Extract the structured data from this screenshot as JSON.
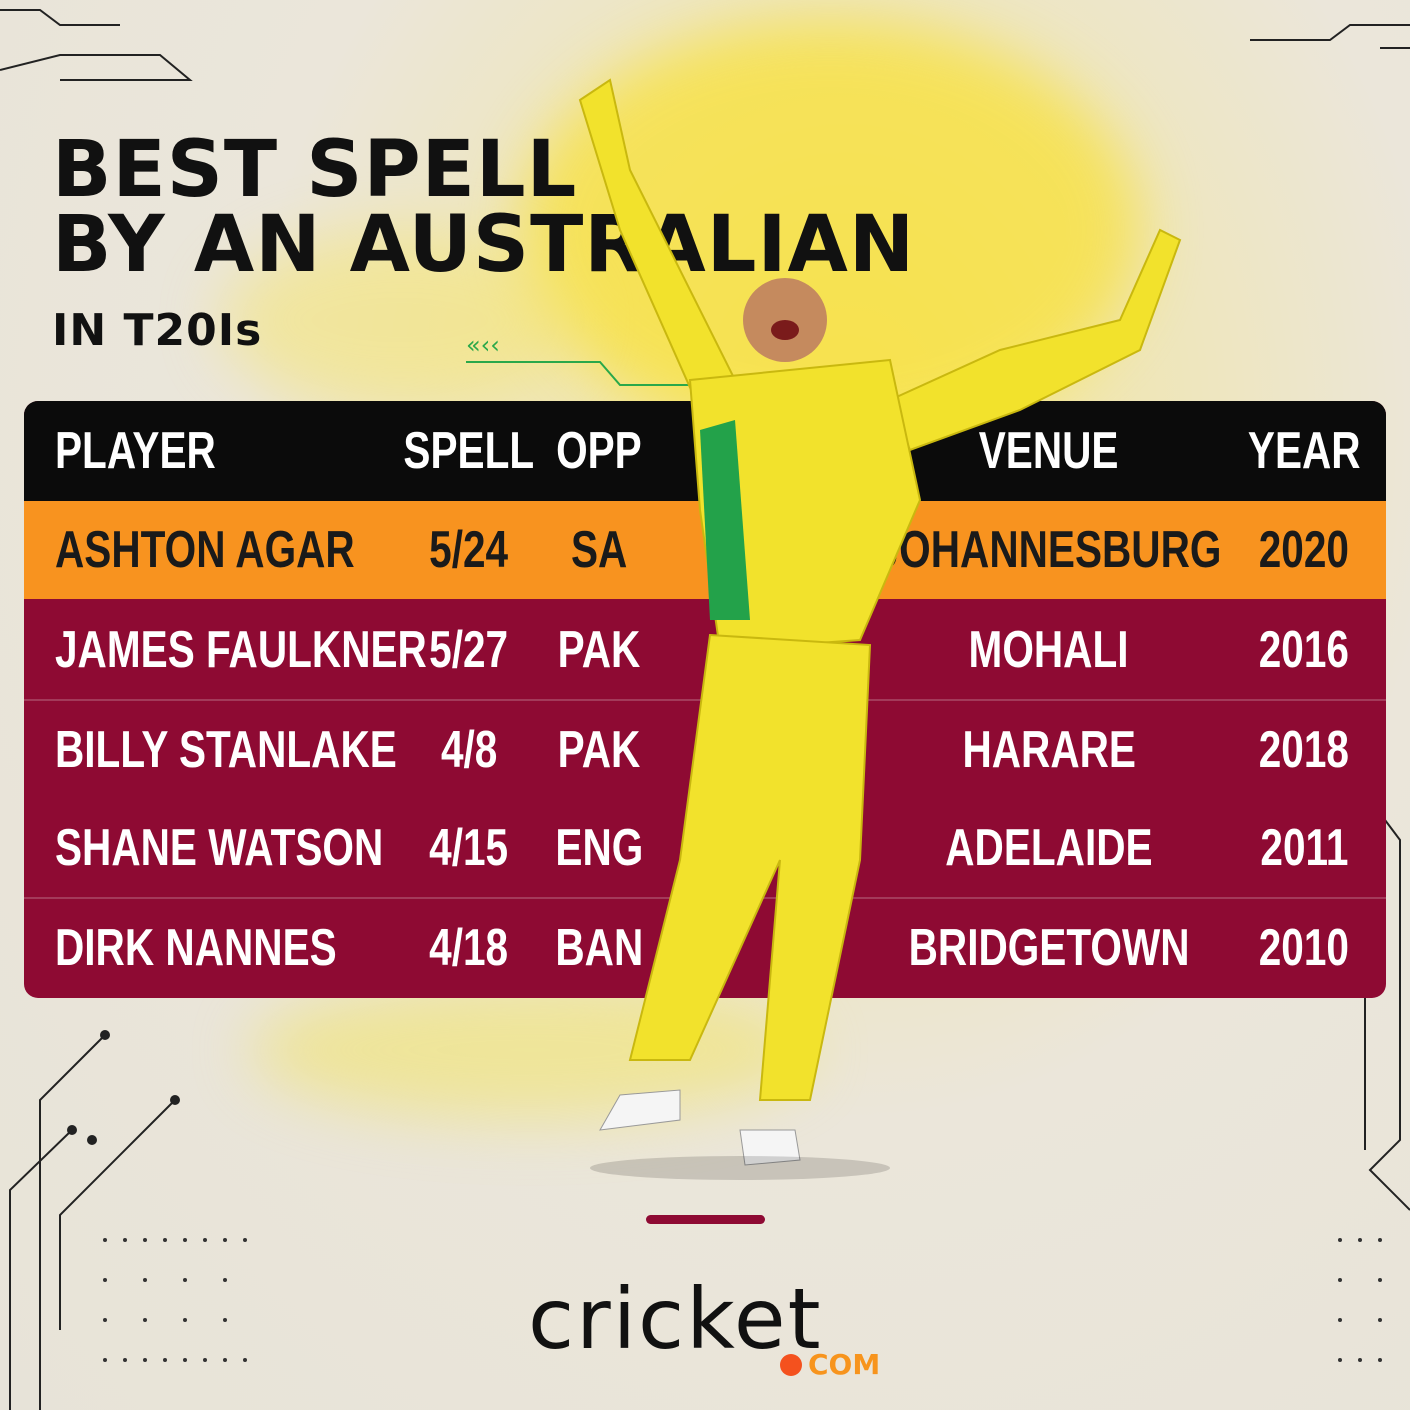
{
  "title": {
    "line1": "BEST SPELL",
    "line2": "BY AN AUSTRALIAN",
    "line3": "IN T20Is"
  },
  "table": {
    "headers": {
      "player": "PLAYER",
      "spell": "SPELL",
      "opp": "OPP",
      "venue": "VENUE",
      "year": "YEAR"
    },
    "rows": [
      {
        "player": "ASHTON AGAR",
        "spell": "5/24",
        "opp": "SA",
        "venue": "JOHANNESBURG",
        "year": "2020"
      },
      {
        "player": "JAMES FAULKNER",
        "spell": "5/27",
        "opp": "PAK",
        "venue": "MOHALI",
        "year": "2016"
      },
      {
        "player": "BILLY STANLAKE",
        "spell": "4/8",
        "opp": "PAK",
        "venue": "HARARE",
        "year": "2018"
      },
      {
        "player": "SHANE WATSON",
        "spell": "4/15",
        "opp": "ENG",
        "venue": "ADELAIDE",
        "year": "2011"
      },
      {
        "player": "DIRK NANNES",
        "spell": "4/18",
        "opp": "BAN",
        "venue": "BRIDGETOWN",
        "year": "2010"
      }
    ]
  },
  "logo": {
    "text": "cricket",
    "suffix": "COM"
  },
  "colors": {
    "header": "#0b0b0b",
    "highlight": "#f8931f",
    "row": "#8e0a33",
    "accent": "#f4511e"
  }
}
